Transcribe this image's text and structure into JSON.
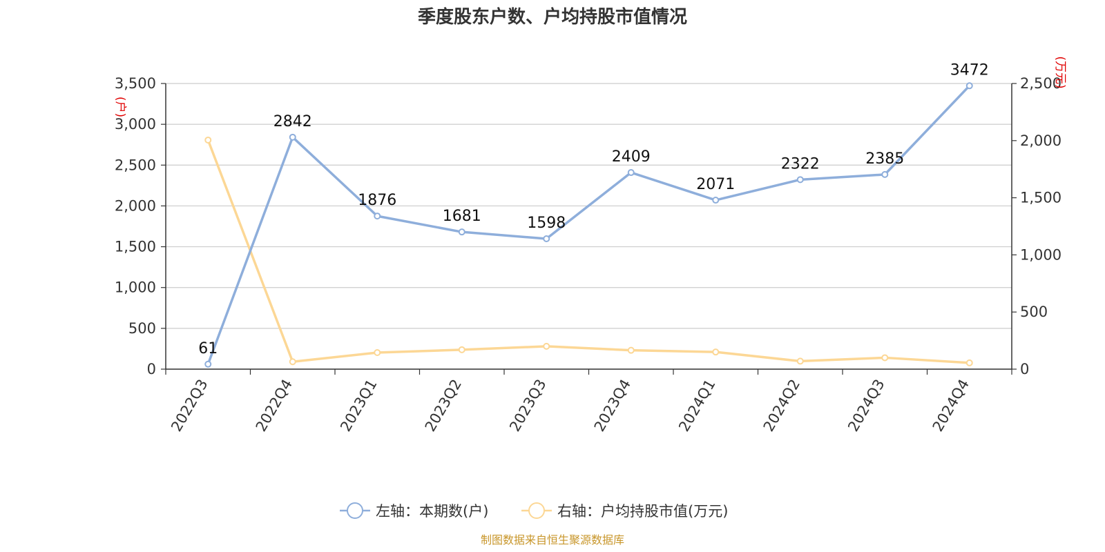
{
  "chart_data": {
    "type": "line",
    "title": "季度股东户数、户均持股市值情况",
    "categories": [
      "2022Q3",
      "2022Q4",
      "2023Q1",
      "2023Q2",
      "2023Q3",
      "2023Q4",
      "2024Q1",
      "2024Q2",
      "2024Q3",
      "2024Q4"
    ],
    "left_axis": {
      "unit": "(户)",
      "ylim": [
        0,
        3500
      ],
      "ticks": [
        "0",
        "500",
        "1,000",
        "1,500",
        "2,000",
        "2,500",
        "3,000",
        "3,500"
      ]
    },
    "right_axis": {
      "unit": "(万元)",
      "ylim": [
        0,
        2500
      ],
      "ticks": [
        "0",
        "500",
        "1,000",
        "1,500",
        "2,000",
        "2,500"
      ]
    },
    "series": [
      {
        "name": "左轴：本期数(户)",
        "axis": "left",
        "color": "#8eaedb",
        "values": [
          61,
          2842,
          1876,
          1681,
          1598,
          2409,
          2071,
          2322,
          2385,
          3472
        ],
        "labels": [
          "61",
          "2842",
          "1876",
          "1681",
          "1598",
          "2409",
          "2071",
          "2322",
          "2385",
          "3472"
        ]
      },
      {
        "name": "右轴：户均持股市值(万元)",
        "axis": "right",
        "color": "#fcd795",
        "values": [
          2005,
          65,
          145,
          170,
          200,
          165,
          150,
          70,
          100,
          55
        ]
      }
    ],
    "grid": true,
    "legend_position": "bottom-center",
    "source": "制图数据来自恒生聚源数据库"
  }
}
